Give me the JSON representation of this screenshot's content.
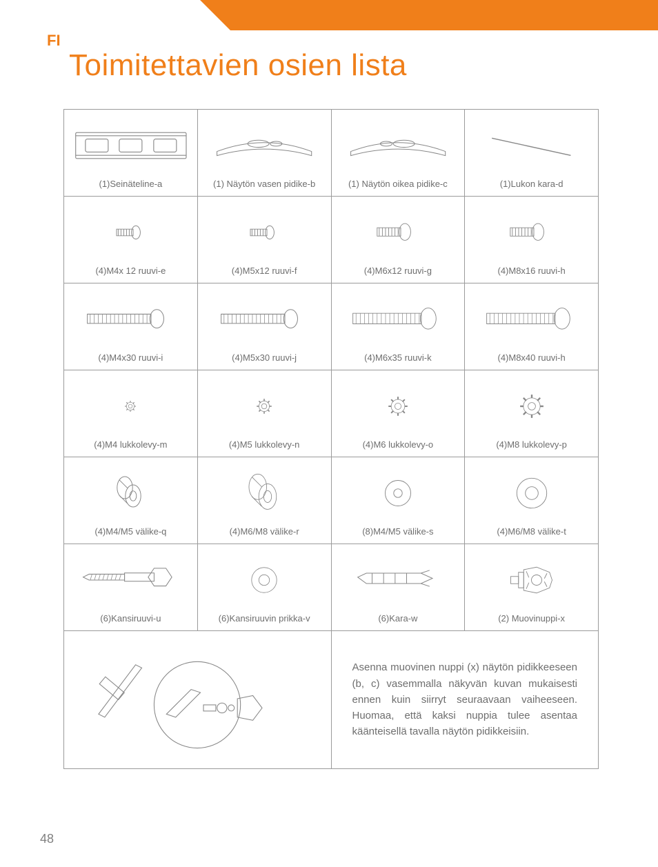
{
  "colors": {
    "accent": "#f07f1a",
    "text": "#6e6e6e",
    "border": "#9a9a9a",
    "bg": "#ffffff"
  },
  "language_code": "FI",
  "title": "Toimitettavien osien lista",
  "page_number": "48",
  "parts": [
    [
      {
        "label": "(1)Seinäteline-a",
        "icon": "wall-plate"
      },
      {
        "label": "(1) Näytön vasen pidike-b",
        "icon": "bracket-l"
      },
      {
        "label": "(1) Näytön oikea pidike-c",
        "icon": "bracket-r"
      },
      {
        "label": "(1)Lukon kara-d",
        "icon": "rod"
      }
    ],
    [
      {
        "label": "(4)M4x 12 ruuvi-e",
        "icon": "screw-xs"
      },
      {
        "label": "(4)M5x12 ruuvi-f",
        "icon": "screw-xs"
      },
      {
        "label": "(4)M6x12 ruuvi-g",
        "icon": "screw-s"
      },
      {
        "label": "(4)M8x16 ruuvi-h",
        "icon": "screw-s"
      }
    ],
    [
      {
        "label": "(4)M4x30 ruuvi-i",
        "icon": "screw-m"
      },
      {
        "label": "(4)M5x30 ruuvi-j",
        "icon": "screw-m"
      },
      {
        "label": "(4)M6x35 ruuvi-k",
        "icon": "screw-l"
      },
      {
        "label": "(4)M8x40 ruuvi-h",
        "icon": "screw-l"
      }
    ],
    [
      {
        "label": "(4)M4 lukkolevy-m",
        "icon": "gear-xs"
      },
      {
        "label": "(4)M5 lukkolevy-n",
        "icon": "gear-s"
      },
      {
        "label": "(4)M6 lukkolevy-o",
        "icon": "gear-m"
      },
      {
        "label": "(4)M8 lukkolevy-p",
        "icon": "gear-l"
      }
    ],
    [
      {
        "label": "(4)M4/M5 välike-q",
        "icon": "spacer-tube-s"
      },
      {
        "label": "(4)M6/M8 välike-r",
        "icon": "spacer-tube-l"
      },
      {
        "label": "(8)M4/M5 välike-s",
        "icon": "washer-s"
      },
      {
        "label": "(4)M6/M8 välike-t",
        "icon": "washer-l"
      }
    ],
    [
      {
        "label": "(6)Kansiruuvi-u",
        "icon": "lag-bolt"
      },
      {
        "label": "(6)Kansiruuvin prikka-v",
        "icon": "flat-washer"
      },
      {
        "label": "(6)Kara-w",
        "icon": "anchor"
      },
      {
        "label": "(2) Muovinuppi-x",
        "icon": "knob"
      }
    ]
  ],
  "instruction_text": "Asenna muovinen nuppi (x) näytön pidikkeeseen (b, c) vasemmalla näkyvän kuvan mukaisesti ennen kuin siirryt seuraavaan vaiheeseen. Huomaa, että kaksi nuppia tulee asentaa käänteisellä tavalla näytön pidikkeisiin."
}
